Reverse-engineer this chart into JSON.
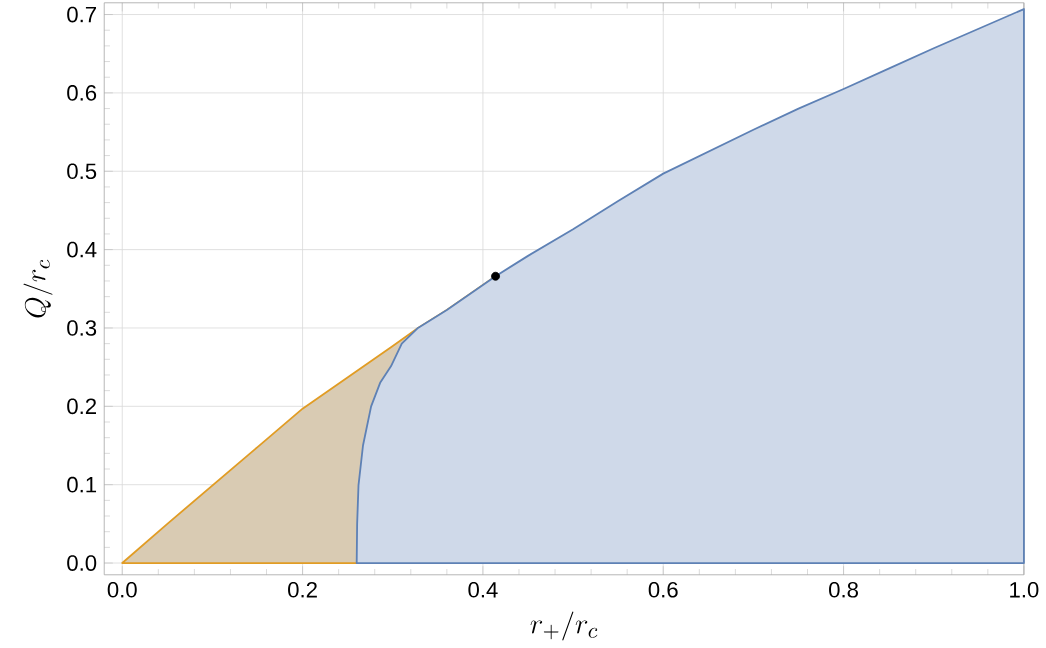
{
  "chart_data": {
    "type": "area",
    "xlabel": "r_+/r_c",
    "ylabel": "Q/r_c",
    "xlim": [
      -0.02,
      1.0
    ],
    "ylim": [
      -0.015,
      0.715
    ],
    "xticks": [
      {
        "value": 0,
        "label": "0.0"
      },
      {
        "value": 0.2,
        "label": "0.2"
      },
      {
        "value": 0.4,
        "label": "0.4"
      },
      {
        "value": 0.6,
        "label": "0.6"
      },
      {
        "value": 0.8,
        "label": "0.8"
      },
      {
        "value": 1,
        "label": "1.0"
      }
    ],
    "yticks": [
      {
        "value": 0,
        "label": "0.0"
      },
      {
        "value": 0.1,
        "label": "0.1"
      },
      {
        "value": 0.2,
        "label": "0.2"
      },
      {
        "value": 0.3,
        "label": "0.3"
      },
      {
        "value": 0.4,
        "label": "0.4"
      },
      {
        "value": 0.5,
        "label": "0.5"
      },
      {
        "value": 0.6,
        "label": "0.6"
      },
      {
        "value": 0.7,
        "label": "0.7"
      }
    ],
    "grid": true,
    "series": [
      {
        "color": "#e19c24",
        "x": [
          0,
          0.05,
          0.1,
          0.15,
          0.2,
          0.26,
          0.3,
          0.328,
          0.36,
          0.414
        ],
        "values": [
          0,
          0.05,
          0.099,
          0.148,
          0.197,
          0.245,
          0.277,
          0.3,
          0.323,
          0.366
        ]
      },
      {
        "color": "#5e81b5",
        "x": [
          0.26,
          0.2605,
          0.262,
          0.267,
          0.276,
          0.286,
          0.298,
          0.31,
          0.328,
          0.36,
          0.414,
          0.45,
          0.5,
          0.55,
          0.6,
          0.65,
          0.7,
          0.75,
          0.8,
          0.85,
          0.9,
          0.95,
          1.0
        ],
        "values": [
          0,
          0.05,
          0.099,
          0.15,
          0.2,
          0.23,
          0.251,
          0.28,
          0.3,
          0.323,
          0.366,
          0.392,
          0.426,
          0.462,
          0.497,
          0.525,
          0.553,
          0.58,
          0.605,
          0.631,
          0.657,
          0.682,
          0.707
        ]
      },
      {
        "type": "scatter",
        "color": "#000000",
        "marker": "circle",
        "x": [
          0.414
        ],
        "values": [
          0.366
        ]
      }
    ]
  }
}
